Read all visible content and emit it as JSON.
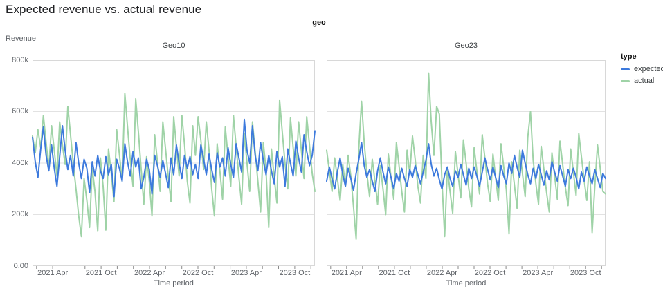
{
  "title": "Expected revenue vs. actual revenue",
  "facet_header": {
    "label": "geo"
  },
  "y_axis": {
    "title": "Revenue",
    "tick_labels": [
      "800k",
      "600k",
      "400k",
      "200k",
      "0.00"
    ]
  },
  "x_axis": {
    "title": "Time period",
    "major_ticks": [
      {
        "label": "2021 Apr",
        "t": 0.0714
      },
      {
        "label": "2021 Oct",
        "t": 0.2429
      },
      {
        "label": "2022 Apr",
        "t": 0.4143
      },
      {
        "label": "2022 Oct",
        "t": 0.5857
      },
      {
        "label": "2023 Apr",
        "t": 0.7571
      },
      {
        "label": "2023 Oct",
        "t": 0.9286
      }
    ],
    "minor_ticks": [
      0.0143,
      0.1286,
      0.1857,
      0.3,
      0.3571,
      0.4714,
      0.5286,
      0.6429,
      0.7,
      0.8143,
      0.8714,
      0.9857
    ]
  },
  "legend": {
    "title": "type",
    "items": [
      {
        "label": "expected",
        "color": "#3d7add"
      },
      {
        "label": "actual",
        "color": "#9fd3a7"
      }
    ]
  },
  "colors": {
    "expected": "#3d7add",
    "actual": "#9fd3a7",
    "grid": "#e2e2e2",
    "border": "#d8d8d8",
    "tick": "#8a8a8a"
  },
  "chart_data": {
    "type": "line",
    "title": "Expected revenue vs. actual revenue",
    "xlabel": "Time period",
    "ylabel": "Revenue",
    "x_domain": [
      "2021-01",
      "2023-12"
    ],
    "x_note": "points evenly spaced, approx. weekly, values estimated from pixels",
    "values_unit": "thousands",
    "ylim_k": [
      0,
      800
    ],
    "gridlines_k": [
      200,
      400,
      600
    ],
    "legend_position": "right",
    "facets": [
      {
        "title": "Geo10",
        "series": [
          {
            "name": "actual",
            "color": "#9fd3a7",
            "values": [
              505,
              440,
              530,
              460,
              585,
              480,
              380,
              545,
              450,
              350,
              560,
              470,
              395,
              620,
              510,
              400,
              300,
              195,
              115,
              340,
              255,
              150,
              380,
              290,
              135,
              420,
              310,
              140,
              455,
              360,
              250,
              530,
              435,
              330,
              670,
              540,
              415,
              310,
              650,
              520,
              380,
              240,
              425,
              330,
              195,
              510,
              405,
              290,
              560,
              455,
              345,
              250,
              580,
              465,
              350,
              585,
              470,
              330,
              245,
              545,
              430,
              580,
              490,
              375,
              560,
              450,
              300,
              195,
              475,
              370,
              260,
              540,
              425,
              310,
              585,
              465,
              345,
              240,
              515,
              400,
              290,
              560,
              445,
              330,
              210,
              480,
              370,
              150,
              455,
              345,
              245,
              645,
              520,
              400,
              300,
              575,
              460,
              350,
              560,
              450,
              340,
              580,
              470,
              360,
              290
            ]
          },
          {
            "name": "expected",
            "color": "#3d7add",
            "values": [
              500,
              405,
              345,
              455,
              540,
              430,
              370,
              470,
              380,
              310,
              425,
              545,
              450,
              375,
              430,
              350,
              480,
              400,
              340,
              415,
              380,
              285,
              405,
              350,
              430,
              370,
              340,
              425,
              355,
              395,
              270,
              415,
              380,
              330,
              475,
              405,
              350,
              445,
              385,
              420,
              300,
              345,
              415,
              375,
              280,
              430,
              390,
              345,
              410,
              360,
              305,
              420,
              355,
              470,
              400,
              340,
              430,
              380,
              425,
              355,
              395,
              340,
              470,
              415,
              355,
              435,
              375,
              325,
              440,
              385,
              420,
              350,
              460,
              395,
              345,
              475,
              420,
              365,
              570,
              450,
              400,
              545,
              430,
              370,
              480,
              410,
              355,
              430,
              370,
              320,
              445,
              385,
              425,
              310,
              455,
              400,
              350,
              485,
              420,
              365,
              510,
              445,
              390,
              430,
              525
            ]
          }
        ]
      },
      {
        "title": "Geo23",
        "series": [
          {
            "name": "actual",
            "color": "#9fd3a7",
            "values": [
              450,
              370,
              290,
              420,
              340,
              255,
              395,
              310,
              430,
              350,
              230,
              105,
              460,
              640,
              480,
              360,
              270,
              415,
              330,
              240,
              390,
              300,
              200,
              435,
              345,
              260,
              480,
              390,
              290,
              210,
              450,
              360,
              505,
              415,
              310,
              245,
              430,
              340,
              750,
              560,
              430,
              620,
              590,
              330,
              115,
              380,
              290,
              205,
              445,
              355,
              265,
              490,
              400,
              300,
              230,
              460,
              370,
              280,
              510,
              420,
              320,
              250,
              435,
              345,
              255,
              475,
              385,
              295,
              125,
              405,
              315,
              225,
              450,
              360,
              270,
              500,
              600,
              410,
              320,
              240,
              465,
              375,
              285,
              210,
              440,
              350,
              260,
              485,
              395,
              305,
              235,
              455,
              365,
              275,
              515,
              425,
              335,
              255,
              405,
              130,
              310,
              470,
              380,
              290,
              280
            ]
          },
          {
            "name": "expected",
            "color": "#3d7add",
            "values": [
              330,
              385,
              340,
              300,
              365,
              420,
              355,
              310,
              380,
              340,
              295,
              360,
              415,
              480,
              390,
              345,
              375,
              330,
              290,
              370,
              420,
              365,
              320,
              385,
              345,
              300,
              360,
              330,
              380,
              340,
              310,
              375,
              345,
              390,
              355,
              320,
              365,
              410,
              475,
              395,
              350,
              380,
              335,
              300,
              355,
              385,
              340,
              310,
              370,
              345,
              395,
              355,
              315,
              380,
              340,
              385,
              350,
              310,
              365,
              420,
              375,
              335,
              385,
              345,
              305,
              390,
              350,
              320,
              400,
              360,
              430,
              385,
              345,
              450,
              400,
              355,
              320,
              380,
              340,
              395,
              355,
              315,
              370,
              335,
              405,
              365,
              330,
              390,
              350,
              310,
              375,
              340,
              380,
              345,
              300,
              365,
              330,
              385,
              350,
              320,
              375,
              340,
              305,
              360,
              340
            ]
          }
        ]
      }
    ]
  }
}
